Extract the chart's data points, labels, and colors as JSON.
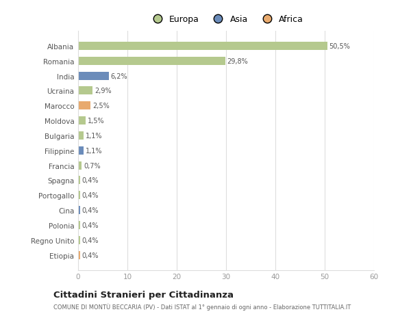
{
  "categories": [
    "Albania",
    "Romania",
    "India",
    "Ucraina",
    "Marocco",
    "Moldova",
    "Bulgaria",
    "Filippine",
    "Francia",
    "Spagna",
    "Portogallo",
    "Cina",
    "Polonia",
    "Regno Unito",
    "Etiopia"
  ],
  "values": [
    50.5,
    29.8,
    6.2,
    2.9,
    2.5,
    1.5,
    1.1,
    1.1,
    0.7,
    0.4,
    0.4,
    0.4,
    0.4,
    0.4,
    0.4
  ],
  "labels": [
    "50,5%",
    "29,8%",
    "6,2%",
    "2,9%",
    "2,5%",
    "1,5%",
    "1,1%",
    "1,1%",
    "0,7%",
    "0,4%",
    "0,4%",
    "0,4%",
    "0,4%",
    "0,4%",
    "0,4%"
  ],
  "continent": [
    "Europa",
    "Europa",
    "Asia",
    "Europa",
    "Africa",
    "Europa",
    "Europa",
    "Asia",
    "Europa",
    "Europa",
    "Europa",
    "Asia",
    "Europa",
    "Europa",
    "Africa"
  ],
  "colors": {
    "Europa": "#b5c98e",
    "Asia": "#6b8cba",
    "Africa": "#e8aa6e"
  },
  "xlim": [
    0,
    60
  ],
  "xticks": [
    0,
    10,
    20,
    30,
    40,
    50,
    60
  ],
  "title": "Cittadini Stranieri per Cittadinanza",
  "subtitle": "COMUNE DI MONTÙ BECCARIA (PV) - Dati ISTAT al 1° gennaio di ogni anno - Elaborazione TUTTITALIA.IT",
  "background_color": "#ffffff",
  "grid_color": "#dddddd",
  "bar_height": 0.55
}
